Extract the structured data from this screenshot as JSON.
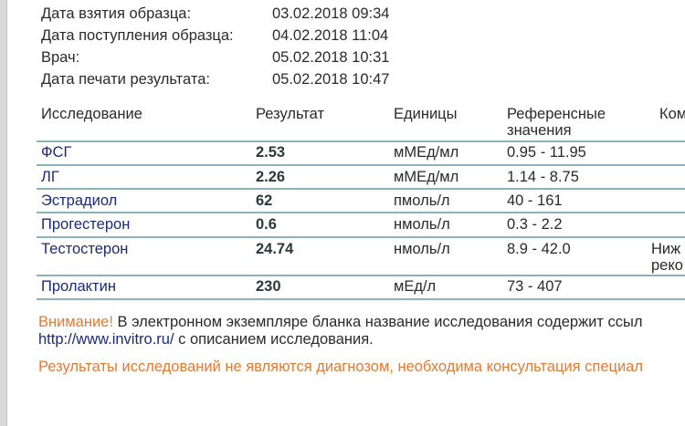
{
  "meta": [
    {
      "label": "Дата взятия образца:",
      "value": "03.02.2018 09:34"
    },
    {
      "label": "Дата поступления образца:",
      "value": "04.02.2018 11:04"
    },
    {
      "label": "Врач:",
      "value": "05.02.2018 10:31"
    },
    {
      "label": "Дата печати результата:",
      "value": "05.02.2018 10:47"
    }
  ],
  "table": {
    "headers": [
      "Исследование",
      "Результат",
      "Единицы",
      "Референсные",
      "значения",
      "Ком"
    ],
    "rows": [
      {
        "name": "ФСГ",
        "result": "2.53",
        "units": "мМЕд/мл",
        "ref": "0.95 - 11.95",
        "comment": ""
      },
      {
        "name": "ЛГ",
        "result": "2.26",
        "units": "мМЕд/мл",
        "ref": "1.14 - 8.75",
        "comment": ""
      },
      {
        "name": "Эстрадиол",
        "result": "62",
        "units": "пмоль/л",
        "ref": "40 - 161",
        "comment": ""
      },
      {
        "name": "Прогестерон",
        "result": "0.6",
        "units": "нмоль/л",
        "ref": "0.3 - 2.2",
        "comment": ""
      },
      {
        "name": "Тестостерон",
        "result": "24.74",
        "units": "нмоль/л",
        "ref": "8.9 - 42.0",
        "comment": "Ниж",
        "comment2": "реко"
      },
      {
        "name": "Пролактин",
        "result": "230",
        "units": "мЕд/л",
        "ref": "73 - 407",
        "comment": ""
      }
    ]
  },
  "notes": {
    "attention": "Внимание!",
    "line1": " В электронном экземпляре бланка название исследования содержит ссыл",
    "link": "http://www.invitro.ru/",
    "line2": " с описанием исследования.",
    "disclaimer": "Результаты исследований не являются диагнозом, необходима консультация специал"
  },
  "colors": {
    "accent": "#e87a30",
    "link": "#1c2a78",
    "rule": "#8cb3b8"
  }
}
